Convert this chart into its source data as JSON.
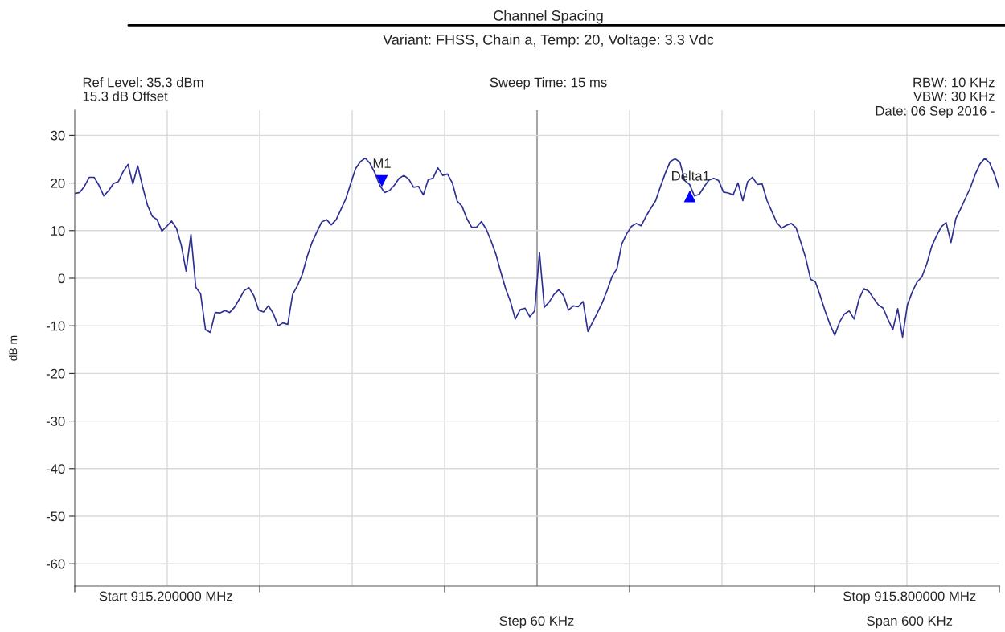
{
  "chart_data": {
    "type": "line",
    "title": "Channel Spacing",
    "subtitle": "Variant: FHSS, Chain a, Temp: 20, Voltage: 3.3 Vdc",
    "ylabel": "dB m",
    "annotations": [
      "Ref Level: 35.3 dBm",
      "15.3 dB Offset",
      "Sweep Time: 15 ms",
      "RBW: 10 KHz",
      "VBW: 30 KHz",
      "Date: 06 Sep 2016 -",
      "Start 915.200000 MHz",
      "Step 60 KHz",
      "Stop 915.800000 MHz",
      "Span 600 KHz",
      "M1",
      "Delta1"
    ],
    "categories": [
      null,
      null,
      null,
      null,
      null,
      null,
      null,
      null,
      null,
      null,
      null,
      null,
      null,
      null,
      null,
      null,
      null,
      null,
      null,
      null,
      null,
      null,
      null,
      null,
      null,
      null,
      null,
      null,
      null,
      null,
      null,
      null,
      null,
      null,
      null,
      null,
      null,
      null,
      null,
      null,
      null,
      null,
      null,
      null,
      null,
      null,
      null,
      null,
      null,
      null,
      null,
      null,
      null,
      null,
      null,
      null,
      null,
      null,
      null,
      null,
      null,
      null,
      null,
      null,
      null,
      null,
      null,
      null,
      null,
      null,
      null,
      null,
      null,
      null,
      null,
      null,
      null,
      null,
      null,
      null,
      null,
      null,
      null,
      null,
      null,
      null,
      null,
      null,
      null,
      null,
      null,
      null,
      null,
      null,
      null,
      null,
      null,
      null,
      null,
      null,
      null,
      null,
      null,
      null,
      null,
      null,
      null,
      null,
      null,
      null,
      null,
      null,
      null,
      null,
      null,
      null,
      null,
      null,
      null,
      null,
      null,
      null,
      null,
      null,
      null,
      null,
      null,
      null,
      null,
      null,
      null,
      null,
      null,
      null,
      null,
      null,
      null,
      null,
      null,
      null,
      null,
      null,
      null,
      null,
      null,
      null,
      null,
      null,
      null,
      null,
      null,
      null,
      null,
      null,
      null,
      null,
      null,
      null,
      null,
      null,
      null,
      null,
      null,
      null,
      null,
      null,
      null,
      null,
      null,
      null,
      null,
      null,
      null,
      null,
      null,
      null,
      null,
      null,
      null,
      null,
      null,
      null,
      null,
      null,
      null,
      null,
      null,
      null,
      null,
      null,
      null,
      null
    ],
    "series": [
      {
        "color": "#2e3192",
        "values": [
          17.8,
          18.0,
          19.3,
          21.2,
          21.2,
          19.5,
          17.3,
          18.4,
          19.9,
          20.3,
          22.4,
          23.9,
          19.8,
          23.6,
          19.3,
          15.4,
          13.0,
          12.3,
          9.9,
          10.9,
          12.0,
          10.5,
          6.9,
          1.5,
          9.2,
          -1.9,
          -3.3,
          -10.8,
          -11.4,
          -7.2,
          -7.3,
          -6.8,
          -7.2,
          -6.1,
          -4.4,
          -2.6,
          -2.0,
          -3.7,
          -6.7,
          -7.1,
          -5.8,
          -7.4,
          -10.0,
          -9.4,
          -9.7,
          -3.4,
          -1.6,
          0.8,
          4.5,
          7.5,
          9.7,
          11.8,
          12.3,
          11.2,
          12.3,
          14.5,
          16.7,
          19.9,
          23.0,
          24.5,
          25.2,
          24.1,
          22.1,
          19.5,
          18.0,
          18.4,
          19.5,
          21.0,
          21.6,
          20.8,
          19.1,
          19.3,
          17.5,
          20.7,
          21.0,
          23.2,
          21.6,
          21.9,
          20.0,
          16.2,
          15.1,
          12.5,
          10.7,
          10.7,
          11.9,
          10.3,
          7.8,
          5.0,
          1.3,
          -2.2,
          -4.9,
          -8.6,
          -6.6,
          -6.3,
          -8.1,
          -6.9,
          5.4,
          -6.1,
          -5.0,
          -3.4,
          -2.4,
          -3.7,
          -6.7,
          -5.8,
          -6.0,
          -4.9,
          -11.2,
          -9.2,
          -7.2,
          -5.1,
          -2.5,
          0.4,
          2.0,
          7.2,
          9.3,
          10.9,
          11.5,
          11.0,
          13.0,
          14.7,
          16.3,
          19.3,
          22.1,
          24.5,
          25.1,
          24.4,
          20.5,
          19.7,
          17.3,
          17.6,
          19.2,
          20.6,
          21.0,
          20.5,
          18.1,
          17.9,
          17.5,
          20.0,
          16.3,
          20.3,
          21.2,
          19.7,
          19.8,
          16.3,
          14.0,
          11.7,
          10.5,
          11.1,
          11.5,
          10.6,
          7.5,
          4.2,
          -0.2,
          -0.8,
          -3.7,
          -6.9,
          -9.7,
          -12.0,
          -9.2,
          -7.5,
          -6.9,
          -8.6,
          -4.4,
          -2.2,
          -2.7,
          -4.2,
          -5.6,
          -6.3,
          -8.7,
          -10.8,
          -6.4,
          -12.4,
          -5.6,
          -2.9,
          -0.8,
          0.3,
          3.0,
          6.6,
          8.9,
          10.8,
          11.7,
          7.5,
          12.5,
          14.6,
          16.8,
          19.0,
          21.8,
          24.0,
          25.2,
          24.2,
          21.8,
          18.6
        ]
      }
    ],
    "ylim": [
      -64.7,
      35.3
    ],
    "yticks": [
      30,
      20,
      10,
      0,
      -10,
      -20,
      -30,
      -40,
      -50,
      -60
    ],
    "grid": true,
    "legend": false,
    "marker": "none",
    "line_style": "solid"
  }
}
